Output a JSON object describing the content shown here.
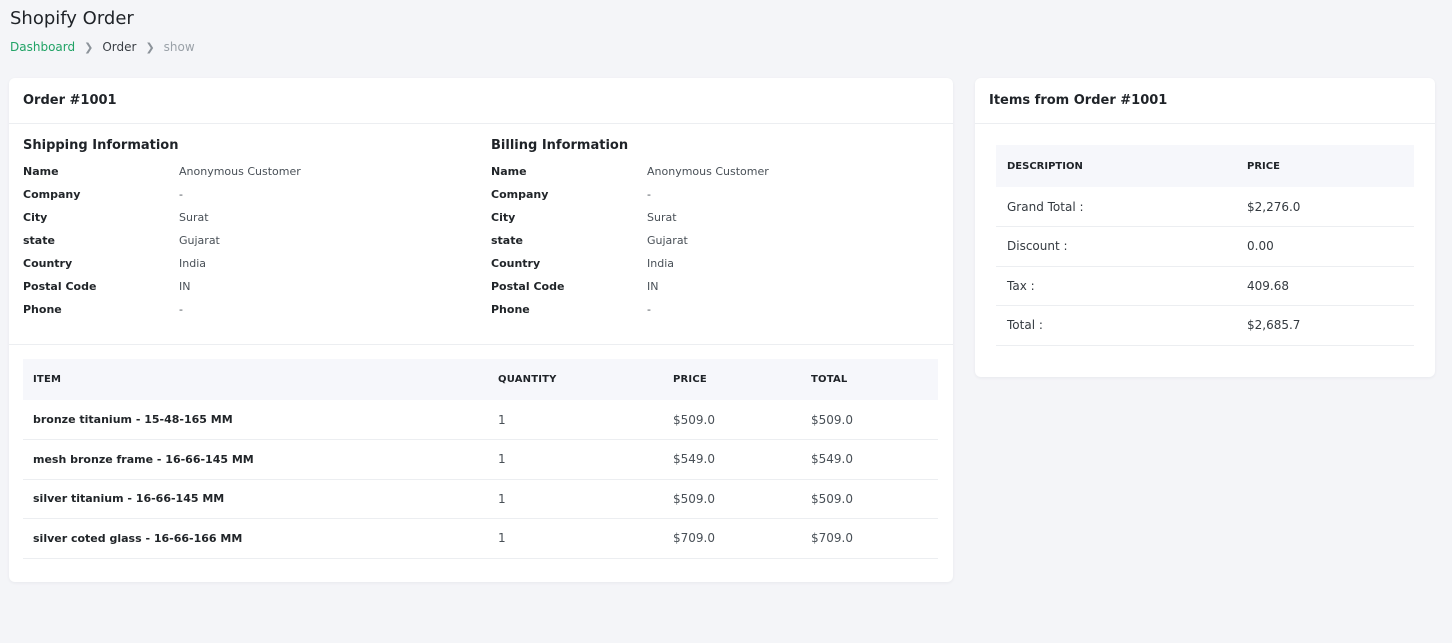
{
  "page": {
    "title": "Shopify Order",
    "breadcrumb": [
      "Dashboard",
      "Order",
      "show"
    ],
    "accent_color": "#21a366"
  },
  "order_card": {
    "title": "Order #1001",
    "shipping": {
      "title": "Shipping Information",
      "rows": [
        {
          "label": "Name",
          "value": "Anonymous Customer"
        },
        {
          "label": "Company",
          "value": "-"
        },
        {
          "label": "City",
          "value": "Surat"
        },
        {
          "label": "state",
          "value": "Gujarat"
        },
        {
          "label": "Country",
          "value": "India"
        },
        {
          "label": "Postal Code",
          "value": "IN"
        },
        {
          "label": "Phone",
          "value": "-"
        }
      ]
    },
    "billing": {
      "title": "Billing Information",
      "rows": [
        {
          "label": "Name",
          "value": "Anonymous Customer"
        },
        {
          "label": "Company",
          "value": "-"
        },
        {
          "label": "City",
          "value": "Surat"
        },
        {
          "label": "state",
          "value": "Gujarat"
        },
        {
          "label": "Country",
          "value": "India"
        },
        {
          "label": "Postal Code",
          "value": "IN"
        },
        {
          "label": "Phone",
          "value": "-"
        }
      ]
    },
    "items_table": {
      "headers": [
        "ITEM",
        "QUANTITY",
        "PRICE",
        "TOTAL"
      ],
      "rows": [
        {
          "item": "bronze titanium - 15-48-165 MM",
          "quantity": "1",
          "price": "$509.0",
          "total": "$509.0"
        },
        {
          "item": "mesh bronze frame - 16-66-145 MM",
          "quantity": "1",
          "price": "$549.0",
          "total": "$549.0"
        },
        {
          "item": "silver titanium - 16-66-145 MM",
          "quantity": "1",
          "price": "$509.0",
          "total": "$509.0"
        },
        {
          "item": "silver coted glass - 16-66-166 MM",
          "quantity": "1",
          "price": "$709.0",
          "total": "$709.0"
        }
      ]
    }
  },
  "items_card": {
    "title": "Items from Order #1001",
    "headers": [
      "DESCRIPTION",
      "PRICE"
    ],
    "rows": [
      {
        "description": "Grand Total :",
        "price": "$2,276.0"
      },
      {
        "description": "Discount :",
        "price": "0.00"
      },
      {
        "description": "Tax :",
        "price": "409.68"
      },
      {
        "description": "Total :",
        "price": "$2,685.7"
      }
    ]
  }
}
